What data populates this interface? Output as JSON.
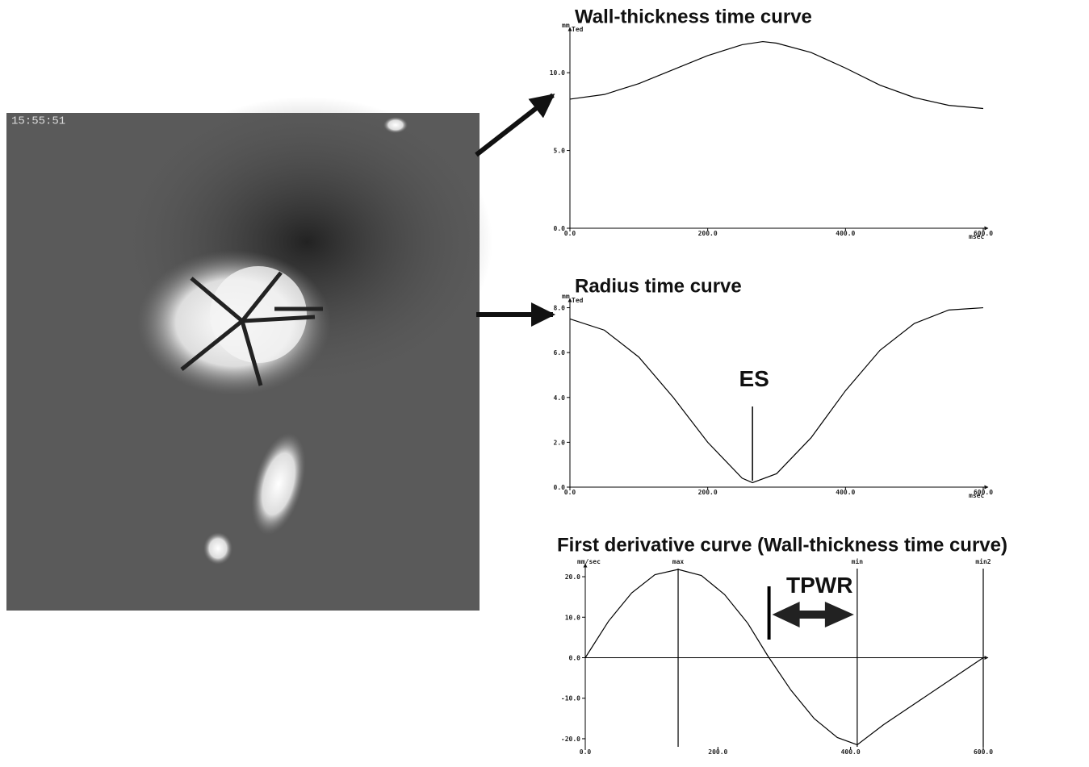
{
  "image_label": "15:55:51",
  "chart_data": [
    {
      "type": "line",
      "title": "Wall-thickness time curve",
      "y_unit": "mm",
      "y_unit_sub": "Ted",
      "x_unit": "msec",
      "color": "#000000",
      "x": [
        0,
        50,
        100,
        150,
        200,
        250,
        280,
        300,
        350,
        400,
        450,
        500,
        550,
        600
      ],
      "values": [
        8.3,
        8.6,
        9.3,
        10.2,
        11.1,
        11.8,
        12.0,
        11.9,
        11.3,
        10.3,
        9.2,
        8.4,
        7.9,
        7.7
      ],
      "xlim": [
        0,
        600
      ],
      "ylim": [
        0,
        12.6
      ],
      "xticks": [
        {
          "value": 0,
          "label": "0.0"
        },
        {
          "value": 200,
          "label": "200.0"
        },
        {
          "value": 400,
          "label": "400.0"
        },
        {
          "value": 600,
          "label": "600.0"
        }
      ],
      "yticks": [
        {
          "value": 0,
          "label": "0.0"
        },
        {
          "value": 5,
          "label": "5.0"
        },
        {
          "value": 10,
          "label": "10.0"
        }
      ]
    },
    {
      "type": "line",
      "title": "Radius time curve",
      "y_unit": "mm",
      "y_unit_sub": "Ted",
      "x_unit": "msec",
      "color": "#000000",
      "x": [
        0,
        50,
        100,
        150,
        200,
        250,
        265,
        300,
        350,
        400,
        450,
        500,
        550,
        600
      ],
      "values": [
        7.5,
        7.0,
        5.8,
        4.0,
        2.0,
        0.4,
        0.2,
        0.6,
        2.2,
        4.3,
        6.1,
        7.3,
        7.9,
        8.0
      ],
      "xlim": [
        0,
        600
      ],
      "ylim": [
        0,
        8.2
      ],
      "xticks": [
        {
          "value": 0,
          "label": "0.0"
        },
        {
          "value": 200,
          "label": "200.0"
        },
        {
          "value": 400,
          "label": "400.0"
        },
        {
          "value": 600,
          "label": "600.0"
        }
      ],
      "yticks": [
        {
          "value": 0,
          "label": "0.0"
        },
        {
          "value": 2,
          "label": "2.0"
        },
        {
          "value": 4,
          "label": "4.0"
        },
        {
          "value": 6,
          "label": "6.0"
        },
        {
          "value": 8,
          "label": "8.0"
        }
      ],
      "markers": [
        {
          "label": "ES",
          "x": 265
        }
      ]
    },
    {
      "type": "line",
      "title": "First derivative curve (Wall-thickness time curve)",
      "y_unit": "mm/sec",
      "color": "#000000",
      "x": [
        0,
        35,
        70,
        105,
        140,
        175,
        210,
        245,
        275,
        310,
        345,
        380,
        410,
        450,
        500,
        550,
        600
      ],
      "values": [
        0,
        9,
        16,
        20.5,
        21.8,
        20.3,
        15.6,
        8.5,
        0.5,
        -8,
        -15,
        -19.7,
        -21.5,
        -16.5,
        -11,
        -5.5,
        0
      ],
      "xlim": [
        0,
        600
      ],
      "ylim": [
        -22,
        22
      ],
      "xticks": [
        {
          "value": 0,
          "label": "0.0"
        },
        {
          "value": 200,
          "label": "200.0"
        },
        {
          "value": 400,
          "label": "400.0"
        },
        {
          "value": 600,
          "label": "600.0"
        }
      ],
      "yticks": [
        {
          "value": -20,
          "label": "-20.0"
        },
        {
          "value": -10,
          "label": "-10.0"
        },
        {
          "value": 0,
          "label": "0.0"
        },
        {
          "value": 10,
          "label": "10.0"
        },
        {
          "value": 20,
          "label": "20.0"
        }
      ],
      "vlines": [
        {
          "label": "max",
          "x": 140
        },
        {
          "label": "min",
          "x": 410
        },
        {
          "label": "min2",
          "x": 600
        }
      ],
      "interval": {
        "label": "TPWR",
        "x": [
          277,
          410
        ]
      }
    }
  ]
}
